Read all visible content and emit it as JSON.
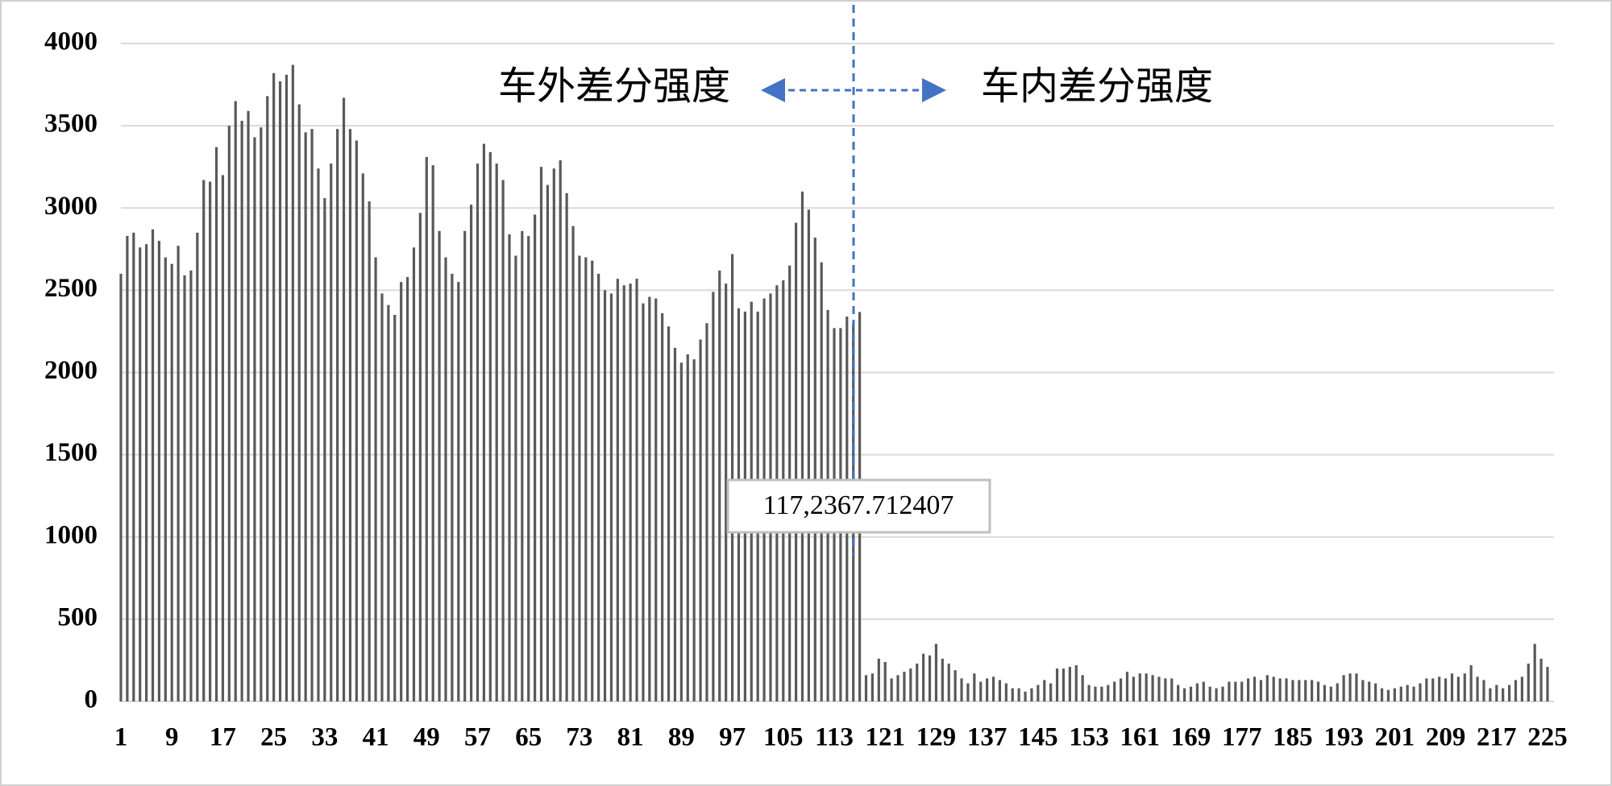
{
  "chart_data": {
    "type": "bar",
    "categories": [
      1,
      null,
      null,
      null,
      null,
      null,
      null,
      null,
      9,
      null,
      null,
      null,
      null,
      null,
      null,
      null,
      17,
      null,
      null,
      null,
      null,
      null,
      null,
      null,
      25,
      null,
      null,
      null,
      null,
      null,
      null,
      null,
      33,
      null,
      null,
      null,
      null,
      null,
      null,
      null,
      41,
      null,
      null,
      null,
      null,
      null,
      null,
      null,
      49,
      null,
      null,
      null,
      null,
      null,
      null,
      null,
      57,
      null,
      null,
      null,
      null,
      null,
      null,
      null,
      65,
      null,
      null,
      null,
      null,
      null,
      null,
      null,
      73,
      null,
      null,
      null,
      null,
      null,
      null,
      null,
      81,
      null,
      null,
      null,
      null,
      null,
      null,
      null,
      89,
      null,
      null,
      null,
      null,
      null,
      null,
      null,
      97,
      null,
      null,
      null,
      null,
      null,
      null,
      null,
      105,
      null,
      null,
      null,
      null,
      null,
      null,
      null,
      113,
      null,
      null,
      null,
      null,
      null,
      null,
      null,
      121,
      null,
      null,
      null,
      null,
      null,
      null,
      null,
      129,
      null,
      null,
      null,
      null,
      null,
      null,
      null,
      137,
      null,
      null,
      null,
      null,
      null,
      null,
      null,
      145,
      null,
      null,
      null,
      null,
      null,
      null,
      null,
      153,
      null,
      null,
      null,
      null,
      null,
      null,
      null,
      161,
      null,
      null,
      null,
      null,
      null,
      null,
      null,
      169,
      null,
      null,
      null,
      null,
      null,
      null,
      null,
      177,
      null,
      null,
      null,
      null,
      null,
      null,
      null,
      185,
      null,
      null,
      null,
      null,
      null,
      null,
      null,
      193,
      null,
      null,
      null,
      null,
      null,
      null,
      null,
      201,
      null,
      null,
      null,
      null,
      null,
      null,
      null,
      209,
      null,
      null,
      null,
      null,
      null,
      null,
      null,
      217,
      null,
      null,
      null,
      null,
      null,
      null,
      null,
      225
    ],
    "values": [
      2600,
      2830,
      2850,
      2760,
      2780,
      2870,
      2800,
      2700,
      2660,
      2770,
      2590,
      2620,
      2850,
      3170,
      3160,
      3370,
      3200,
      3500,
      3650,
      3530,
      3590,
      3430,
      3490,
      3680,
      3820,
      3770,
      3810,
      3870,
      3630,
      3460,
      3480,
      3240,
      3060,
      3270,
      3480,
      3670,
      3480,
      3410,
      3210,
      3040,
      2700,
      2480,
      2410,
      2350,
      2550,
      2580,
      2760,
      2970,
      3310,
      3260,
      2860,
      2700,
      2600,
      2550,
      2860,
      3020,
      3270,
      3390,
      3340,
      3270,
      3170,
      2840,
      2710,
      2860,
      2830,
      2960,
      3250,
      3140,
      3240,
      3290,
      3090,
      2890,
      2710,
      2700,
      2680,
      2600,
      2500,
      2480,
      2570,
      2530,
      2540,
      2570,
      2420,
      2460,
      2450,
      2360,
      2280,
      2150,
      2060,
      2110,
      2080,
      2200,
      2300,
      2490,
      2620,
      2540,
      2720,
      2390,
      2370,
      2430,
      2370,
      2450,
      2480,
      2530,
      2560,
      2650,
      2910,
      3100,
      2990,
      2820,
      2670,
      2380,
      2270,
      2270,
      2340,
      2300,
      2367.712407,
      160,
      170,
      260,
      240,
      140,
      160,
      180,
      200,
      230,
      290,
      280,
      350,
      260,
      230,
      190,
      140,
      110,
      170,
      120,
      140,
      150,
      130,
      110,
      80,
      80,
      60,
      80,
      100,
      130,
      110,
      200,
      200,
      210,
      220,
      160,
      100,
      90,
      90,
      100,
      120,
      140,
      180,
      150,
      170,
      170,
      160,
      150,
      140,
      140,
      100,
      80,
      90,
      110,
      120,
      90,
      80,
      90,
      120,
      120,
      120,
      140,
      150,
      130,
      160,
      150,
      140,
      140,
      130,
      130,
      130,
      130,
      120,
      100,
      90,
      110,
      160,
      170,
      170,
      130,
      120,
      110,
      80,
      70,
      80,
      90,
      100,
      90,
      110,
      140,
      140,
      150,
      140,
      170,
      150,
      170,
      220,
      150,
      130,
      80,
      100,
      80,
      100,
      130,
      150,
      230,
      350,
      260,
      210
    ],
    "color": "#595959",
    "ylim": [
      0,
      4000
    ],
    "yticks": [
      0,
      500,
      1000,
      1500,
      2000,
      2500,
      3000,
      3500,
      4000
    ],
    "grid": true,
    "annotations": [
      "车外差分强度",
      "车内差分强度",
      "117,2367.712407"
    ]
  }
}
